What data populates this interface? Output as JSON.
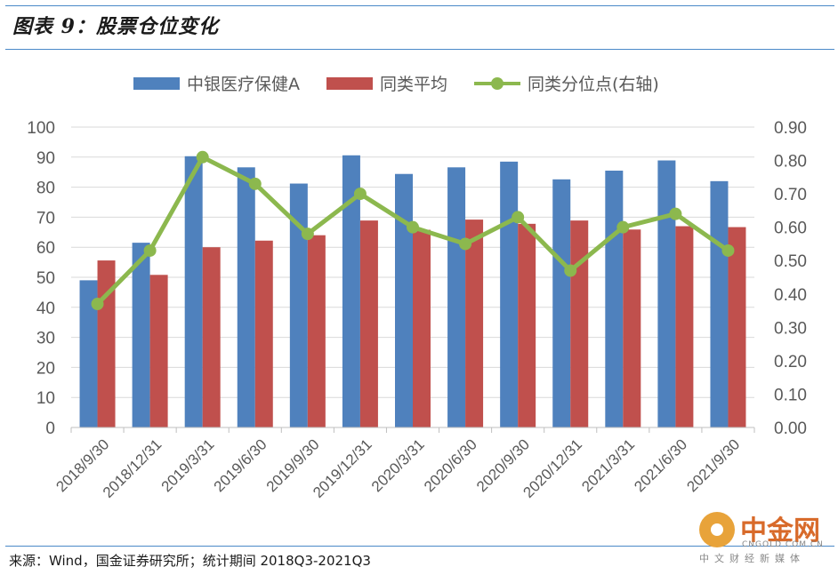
{
  "figure": {
    "title": "图表 9：股票仓位变化",
    "source": "来源：Wind，国金证券研究所；统计期间 2018Q3-2021Q3"
  },
  "watermark": {
    "brand": "中金网",
    "url": "CNGOLD.COM.CN",
    "subtitle": "中文财经新媒体"
  },
  "colors": {
    "fund_bar": "#4f81bd",
    "peer_bar": "#c0504d",
    "percentile_line": "#8cb84e",
    "axis_text": "#595959",
    "grid": "#d9d9d9"
  },
  "chart_data": {
    "type": "bar",
    "categories": [
      "2018/9/30",
      "2018/12/31",
      "2019/3/31",
      "2019/6/30",
      "2019/9/30",
      "2019/12/31",
      "2020/3/31",
      "2020/6/30",
      "2020/9/30",
      "2020/12/31",
      "2021/3/31",
      "2021/6/30",
      "2021/9/30"
    ],
    "series": [
      {
        "name": "中银医疗保健A",
        "type": "bar",
        "axis": "left",
        "values": [
          49,
          61.5,
          90.3,
          86.6,
          81.2,
          90.6,
          84.4,
          86.6,
          88.5,
          82.6,
          85.5,
          88.9,
          82
        ]
      },
      {
        "name": "同类平均",
        "type": "bar",
        "axis": "left",
        "values": [
          55.6,
          50.8,
          60,
          62.2,
          64,
          68.9,
          65.8,
          69.2,
          67.8,
          68.9,
          65.9,
          67,
          66.7
        ]
      },
      {
        "name": "同类分位点(右轴)",
        "type": "line",
        "axis": "right",
        "values": [
          0.37,
          0.53,
          0.81,
          0.73,
          0.58,
          0.7,
          0.6,
          0.55,
          0.63,
          0.47,
          0.6,
          0.64,
          0.53
        ]
      }
    ],
    "ylim_left": [
      0,
      100
    ],
    "yticks_left": [
      "0",
      "10",
      "20",
      "30",
      "40",
      "50",
      "60",
      "70",
      "80",
      "90",
      "100"
    ],
    "ylim_right": [
      0,
      0.9
    ],
    "yticks_right": [
      "0.00",
      "0.10",
      "0.20",
      "0.30",
      "0.40",
      "0.50",
      "0.60",
      "0.70",
      "0.80",
      "0.90"
    ],
    "legend_position": "top",
    "grid": true
  }
}
